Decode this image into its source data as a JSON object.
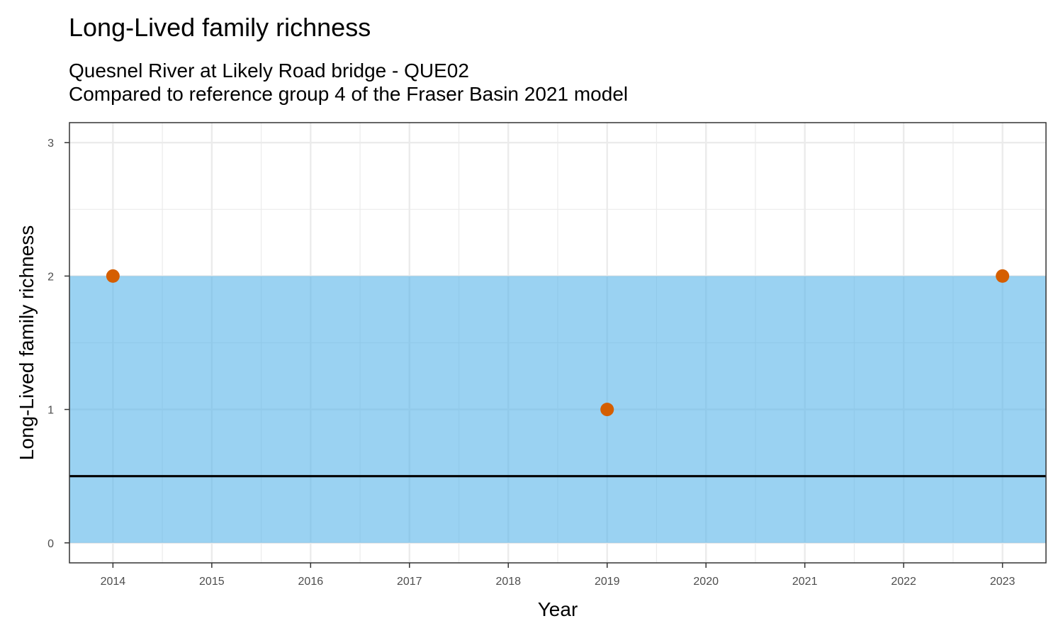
{
  "chart_data": {
    "type": "scatter",
    "title": "Long-Lived family richness",
    "subtitle": [
      "Quesnel River at Likely Road bridge - QUE02",
      "Compared to reference group 4 of the Fraser Basin 2021 model"
    ],
    "xlabel": "Year",
    "ylabel": "Long-Lived family richness",
    "x_ticks": [
      "2014",
      "2015",
      "2016",
      "2017",
      "2018",
      "2019",
      "2020",
      "2021",
      "2022",
      "2023"
    ],
    "y_ticks": [
      "0",
      "1",
      "2",
      "3"
    ],
    "xlim": [
      2013.56,
      2023.44
    ],
    "ylim": [
      -0.15,
      3.15
    ],
    "grid": true,
    "points": [
      {
        "x": 2014,
        "y": 2
      },
      {
        "x": 2019,
        "y": 1
      },
      {
        "x": 2023,
        "y": 2
      }
    ],
    "reference_band": {
      "ymin": 0,
      "ymax": 2
    },
    "reference_line": {
      "y": 0.5
    },
    "colors": {
      "points": "#D55E00",
      "band": "#56B4E9",
      "line": "#000000",
      "grid": "#EBEBEB",
      "panel_border": "#333333"
    }
  }
}
